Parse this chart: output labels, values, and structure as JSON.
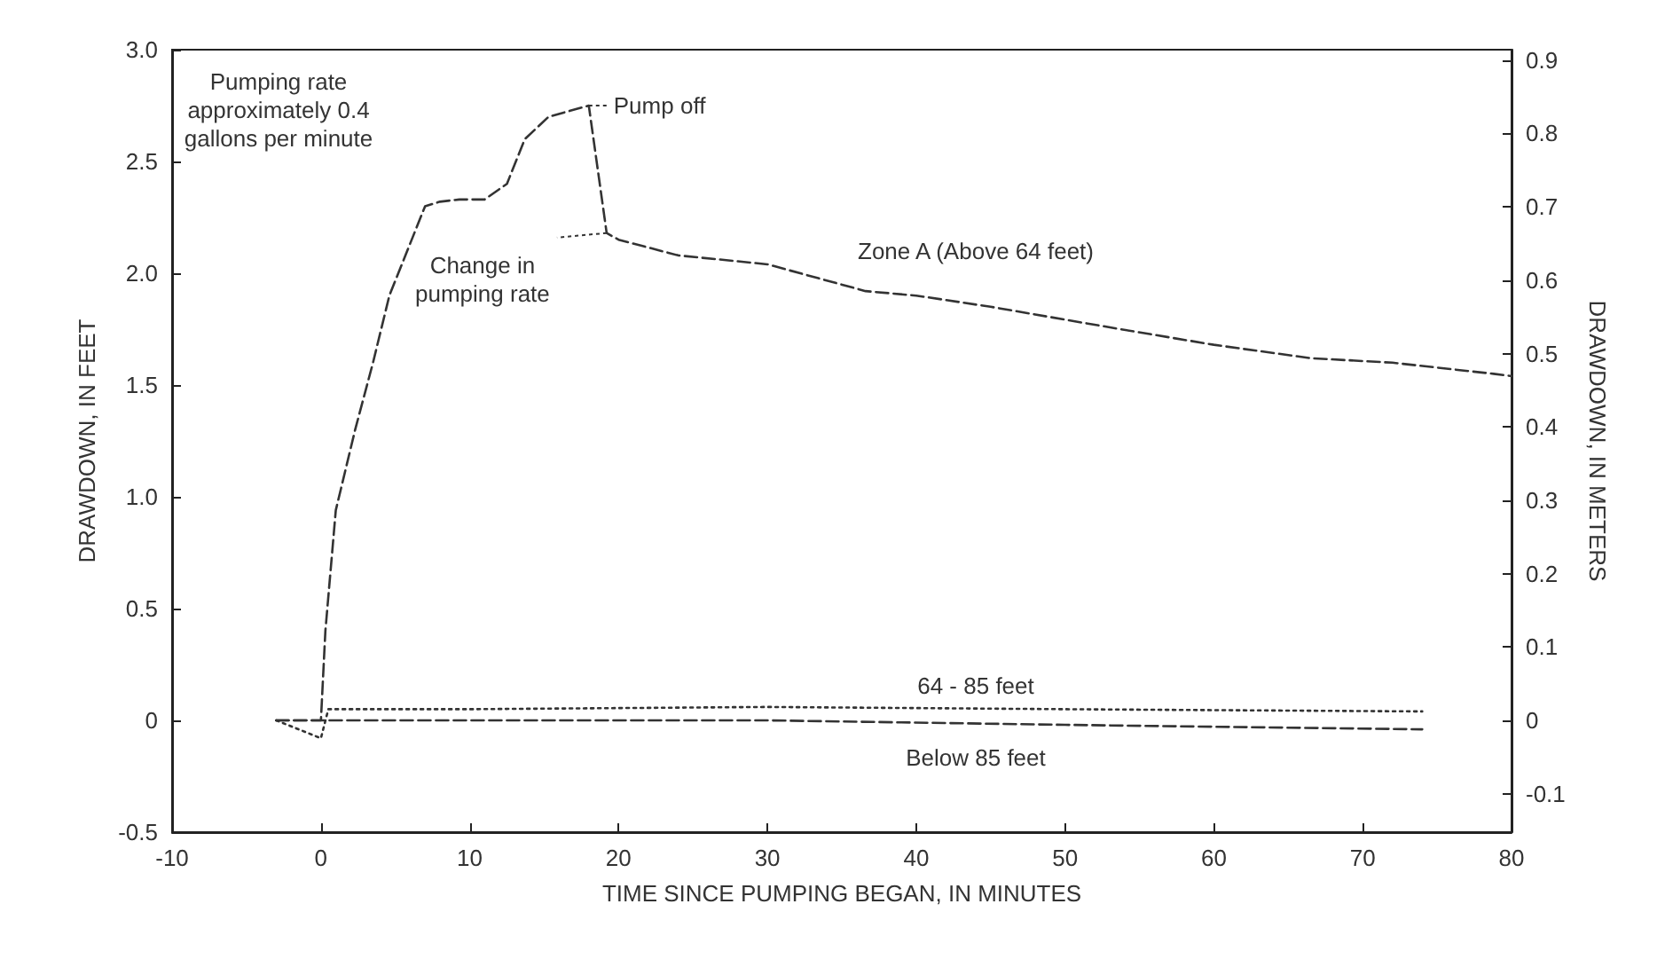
{
  "chart_data": {
    "type": "line",
    "xlabel": "TIME SINCE PUMPING BEGAN, IN MINUTES",
    "ylabel": "DRAWDOWN, IN FEET",
    "y2label": "DRAWDOWN, IN METERS",
    "xlim": [
      -10,
      80
    ],
    "xticks": [
      -10,
      0,
      10,
      20,
      30,
      40,
      50,
      60,
      70,
      80
    ],
    "ylim": [
      -0.5,
      3.0
    ],
    "yticks": [
      {
        "value": -0.5,
        "label": "-0.5"
      },
      0,
      {
        "value": 0.5,
        "label": "0.5"
      },
      {
        "value": 1,
        "label": "1.0"
      },
      {
        "value": 1.5,
        "label": "1.5"
      },
      {
        "value": 2,
        "label": "2.0"
      },
      {
        "value": 2.5,
        "label": "2.5"
      },
      {
        "value": 3,
        "label": "3.0"
      }
    ],
    "y2lim": [
      -0.152,
      0.914
    ],
    "y2ticks": [
      -0.1,
      0,
      0.1,
      0.2,
      0.3,
      0.4,
      0.5,
      0.6,
      0.7,
      0.8,
      0.9
    ],
    "grid": false,
    "legend": false,
    "marker": "none",
    "series": [
      {
        "name": "Zone A (Above 64 feet)",
        "color": "#333333",
        "line_style": "dashed",
        "x": [
          -3,
          0,
          0.3,
          1,
          2.3,
          3.5,
          4.6,
          5.8,
          7,
          8,
          9.3,
          11,
          12.5,
          13.7,
          15.3,
          18,
          19.2,
          20,
          24,
          30,
          36.6,
          40,
          45,
          53.7,
          60,
          66.5,
          72,
          78.8,
          80
        ],
        "values": [
          0,
          0,
          0.4,
          0.94,
          1.3,
          1.6,
          1.9,
          2.1,
          2.3,
          2.32,
          2.33,
          2.33,
          2.4,
          2.6,
          2.7,
          2.75,
          2.18,
          2.15,
          2.08,
          2.04,
          1.92,
          1.9,
          1.85,
          1.75,
          1.68,
          1.62,
          1.6,
          1.55,
          1.54
        ]
      },
      {
        "name": "64 - 85 feet",
        "color": "#333333",
        "line_style": "dotted",
        "x": [
          -3,
          0,
          0.5,
          10,
          30,
          50,
          74
        ],
        "values": [
          0,
          -0.08,
          0.05,
          0.05,
          0.06,
          0.05,
          0.04
        ]
      },
      {
        "name": "Below 85 feet",
        "color": "#333333",
        "line_style": "dashed",
        "x": [
          -3,
          0,
          10,
          30,
          50,
          74
        ],
        "values": [
          0,
          0,
          0,
          0,
          -0.02,
          -0.04
        ]
      }
    ],
    "annotations": [
      "Pumping rate\napproximately 0.4\ngallons per minute",
      {
        "text": "Pump off",
        "x": 18,
        "y": 2.75
      },
      {
        "text": "Change in\npumping rate",
        "x": 19.2,
        "y": 2.18
      }
    ]
  }
}
